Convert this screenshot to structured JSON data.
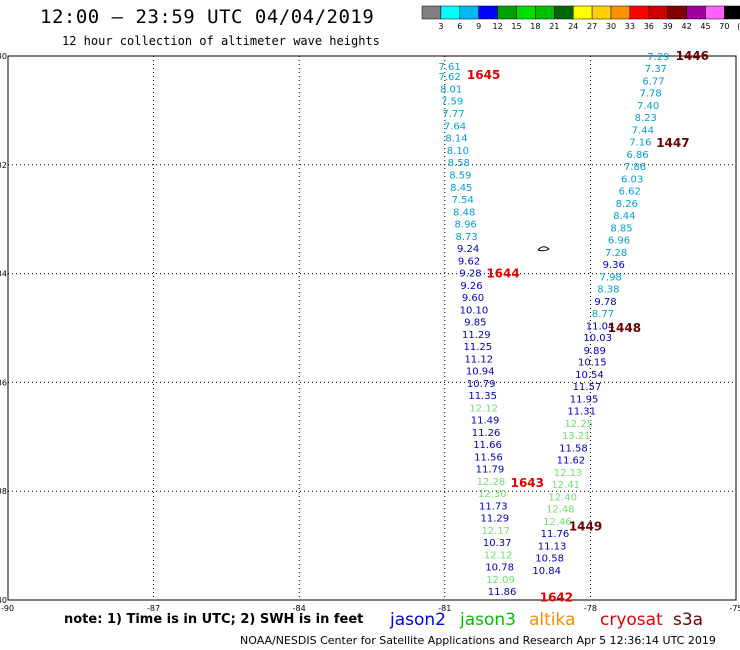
{
  "header": {
    "title": "12:00 – 23:59 UTC 04/04/2019",
    "subtitle": "12 hour collection of altimeter wave heights"
  },
  "colorbar": {
    "unit": "(ft)",
    "bins": [
      {
        "label": "",
        "color": "#7f7f7f"
      },
      {
        "label": "3",
        "color": "#00ffff"
      },
      {
        "label": "6",
        "color": "#00b8f0"
      },
      {
        "label": "9",
        "color": "#0000ff"
      },
      {
        "label": "12",
        "color": "#00a000"
      },
      {
        "label": "15",
        "color": "#00e000"
      },
      {
        "label": "18",
        "color": "#00c000"
      },
      {
        "label": "21",
        "color": "#006800"
      },
      {
        "label": "24",
        "color": "#ffff00"
      },
      {
        "label": "27",
        "color": "#ffd000"
      },
      {
        "label": "30",
        "color": "#ff9000"
      },
      {
        "label": "33",
        "color": "#ff0000"
      },
      {
        "label": "36",
        "color": "#d00000"
      },
      {
        "label": "39",
        "color": "#800000"
      },
      {
        "label": "42",
        "color": "#a000a0"
      },
      {
        "label": "45",
        "color": "#ff60ff"
      },
      {
        "label": "70",
        "color": "#000000"
      }
    ]
  },
  "legend": [
    {
      "name": "jason2",
      "color": "#0000e0"
    },
    {
      "name": "jason3",
      "color": "#00c000"
    },
    {
      "name": "altika",
      "color": "#ff8c00"
    },
    {
      "name": "cryosat",
      "color": "#e00000"
    },
    {
      "name": "s3a",
      "color": "#700000"
    }
  ],
  "note": "note: 1) Time is in UTC; 2) SWH is in feet",
  "credit": "NOAA/NESDIS Center for Satellite Applications and Research    Apr  5 12:36:14 UTC 2019",
  "chart_data": {
    "type": "scatter",
    "xlim": [
      -90,
      -75
    ],
    "ylim": [
      -40,
      -30
    ],
    "xticks": [
      -87,
      -84,
      -81,
      -78,
      -75
    ],
    "yticks": [
      -30,
      -32,
      -34,
      -36,
      -38
    ],
    "x_tick_labels": [
      "-87",
      "-84",
      "-81",
      "-78",
      "-75"
    ],
    "y_tick_labels": [
      "-30",
      "-32",
      "-34",
      "-36",
      "-38",
      "-40"
    ],
    "corner_label": "-90",
    "grid": true,
    "series": [
      {
        "name": "jason3",
        "pass_time_labels": [
          {
            "text": "1645",
            "color": "#e00000",
            "x": -80.2,
            "y": -30.35
          },
          {
            "text": "1644",
            "color": "#e00000",
            "x": -79.8,
            "y": -34.0
          },
          {
            "text": "1643",
            "color": "#e00000",
            "x": -79.3,
            "y": -37.85
          },
          {
            "text": "1642",
            "color": "#e00000",
            "x": -78.7,
            "y": -39.95
          }
        ],
        "points": [
          {
            "v": "7.61",
            "c": "#00a0d8",
            "x": -80.9,
            "y": -30.18
          },
          {
            "v": "7.62",
            "c": "#00a0d8",
            "x": -80.9,
            "y": -30.37
          },
          {
            "v": "8.01",
            "c": "#00a0d8",
            "x": -80.87,
            "y": -30.6
          },
          {
            "v": "7.59",
            "c": "#00a0d8",
            "x": -80.85,
            "y": -30.82
          },
          {
            "v": "7.77",
            "c": "#00a0d8",
            "x": -80.82,
            "y": -31.05
          },
          {
            "v": "7.64",
            "c": "#00a0d8",
            "x": -80.79,
            "y": -31.28
          },
          {
            "v": "8.14",
            "c": "#00a0d8",
            "x": -80.76,
            "y": -31.5
          },
          {
            "v": "8.10",
            "c": "#00a0d8",
            "x": -80.73,
            "y": -31.73
          },
          {
            "v": "8.58",
            "c": "#00a0d8",
            "x": -80.71,
            "y": -31.95
          },
          {
            "v": "8.59",
            "c": "#00a0d8",
            "x": -80.68,
            "y": -32.18
          },
          {
            "v": "8.45",
            "c": "#00a0d8",
            "x": -80.66,
            "y": -32.41
          },
          {
            "v": "7.54",
            "c": "#00a0d8",
            "x": -80.63,
            "y": -32.63
          },
          {
            "v": "8.48",
            "c": "#00a0d8",
            "x": -80.6,
            "y": -32.86
          },
          {
            "v": "8.96",
            "c": "#00a0d8",
            "x": -80.57,
            "y": -33.08
          },
          {
            "v": "8.73",
            "c": "#00a0d8",
            "x": -80.55,
            "y": -33.31
          },
          {
            "v": "9.24",
            "c": "#0000c0",
            "x": -80.52,
            "y": -33.53
          },
          {
            "v": "9.62",
            "c": "#0000c0",
            "x": -80.5,
            "y": -33.76
          },
          {
            "v": "9.28",
            "c": "#0000c0",
            "x": -80.47,
            "y": -33.98
          },
          {
            "v": "9.26",
            "c": "#0000c0",
            "x": -80.45,
            "y": -34.21
          },
          {
            "v": "9.60",
            "c": "#0000c0",
            "x": -80.42,
            "y": -34.43
          },
          {
            "v": "10.10",
            "c": "#0000c0",
            "x": -80.4,
            "y": -34.66
          },
          {
            "v": "9.85",
            "c": "#0000c0",
            "x": -80.37,
            "y": -34.88
          },
          {
            "v": "11.29",
            "c": "#0000c0",
            "x": -80.35,
            "y": -35.11
          },
          {
            "v": "11.25",
            "c": "#0000c0",
            "x": -80.32,
            "y": -35.33
          },
          {
            "v": "11.12",
            "c": "#0000c0",
            "x": -80.3,
            "y": -35.56
          },
          {
            "v": "10.94",
            "c": "#0000c0",
            "x": -80.27,
            "y": -35.78
          },
          {
            "v": "10.79",
            "c": "#0000c0",
            "x": -80.25,
            "y": -36.01
          },
          {
            "v": "11.35",
            "c": "#0000c0",
            "x": -80.22,
            "y": -36.23
          },
          {
            "v": "12.12",
            "c": "#70e070",
            "x": -80.2,
            "y": -36.46
          },
          {
            "v": "11.49",
            "c": "#0000c0",
            "x": -80.17,
            "y": -36.68
          },
          {
            "v": "11.26",
            "c": "#0000c0",
            "x": -80.15,
            "y": -36.91
          },
          {
            "v": "11.66",
            "c": "#0000c0",
            "x": -80.12,
            "y": -37.13
          },
          {
            "v": "11.56",
            "c": "#0000c0",
            "x": -80.1,
            "y": -37.36
          },
          {
            "v": "11.79",
            "c": "#0000c0",
            "x": -80.07,
            "y": -37.58
          },
          {
            "v": "12.28",
            "c": "#70e070",
            "x": -80.05,
            "y": -37.81
          },
          {
            "v": "12.30",
            "c": "#70e070",
            "x": -80.02,
            "y": -38.03
          },
          {
            "v": "11.73",
            "c": "#0000c0",
            "x": -80.0,
            "y": -38.26
          },
          {
            "v": "11.29",
            "c": "#0000c0",
            "x": -79.97,
            "y": -38.48
          },
          {
            "v": "12.17",
            "c": "#70e070",
            "x": -79.95,
            "y": -38.71
          },
          {
            "v": "10.37",
            "c": "#0000c0",
            "x": -79.92,
            "y": -38.93
          },
          {
            "v": "12.12",
            "c": "#70e070",
            "x": -79.9,
            "y": -39.16
          },
          {
            "v": "10.78",
            "c": "#0000c0",
            "x": -79.87,
            "y": -39.38
          },
          {
            "v": "12.09",
            "c": "#70e070",
            "x": -79.85,
            "y": -39.61
          },
          {
            "v": "11.86",
            "c": "#0000c0",
            "x": -79.82,
            "y": -39.83
          }
        ]
      },
      {
        "name": "s3a",
        "pass_time_labels": [
          {
            "text": "1446",
            "color": "#700000",
            "x": -75.9,
            "y": -30.0
          },
          {
            "text": "1447",
            "color": "#700000",
            "x": -76.3,
            "y": -31.6
          },
          {
            "text": "1448",
            "color": "#700000",
            "x": -77.3,
            "y": -35.0
          },
          {
            "text": "1449",
            "color": "#700000",
            "x": -78.1,
            "y": -38.65
          }
        ],
        "points": [
          {
            "v": "7.29",
            "c": "#00a0d8",
            "x": -76.6,
            "y": -30.0
          },
          {
            "v": "7.37",
            "c": "#00a0d8",
            "x": -76.65,
            "y": -30.22
          },
          {
            "v": "6.77",
            "c": "#00a0d8",
            "x": -76.7,
            "y": -30.45
          },
          {
            "v": "7.78",
            "c": "#00a0d8",
            "x": -76.76,
            "y": -30.67
          },
          {
            "v": "7.40",
            "c": "#00a0d8",
            "x": -76.81,
            "y": -30.9
          },
          {
            "v": "8.23",
            "c": "#00a0d8",
            "x": -76.86,
            "y": -31.12
          },
          {
            "v": "7.44",
            "c": "#00a0d8",
            "x": -76.92,
            "y": -31.35
          },
          {
            "v": "7.16",
            "c": "#00a0d8",
            "x": -76.97,
            "y": -31.57
          },
          {
            "v": "6.86",
            "c": "#00a0d8",
            "x": -77.03,
            "y": -31.8
          },
          {
            "v": "7.86",
            "c": "#00a0d8",
            "x": -77.08,
            "y": -32.02
          },
          {
            "v": "6.03",
            "c": "#00a0d8",
            "x": -77.14,
            "y": -32.25
          },
          {
            "v": "6.62",
            "c": "#00a0d8",
            "x": -77.19,
            "y": -32.47
          },
          {
            "v": "8.26",
            "c": "#00a0d8",
            "x": -77.25,
            "y": -32.7
          },
          {
            "v": "8.44",
            "c": "#00a0d8",
            "x": -77.3,
            "y": -32.92
          },
          {
            "v": "8.85",
            "c": "#00a0d8",
            "x": -77.36,
            "y": -33.15
          },
          {
            "v": "6.96",
            "c": "#00a0d8",
            "x": -77.41,
            "y": -33.37
          },
          {
            "v": "7.28",
            "c": "#00a0d8",
            "x": -77.47,
            "y": -33.6
          },
          {
            "v": "9.36",
            "c": "#0000c0",
            "x": -77.52,
            "y": -33.82
          },
          {
            "v": "7.98",
            "c": "#00a0d8",
            "x": -77.58,
            "y": -34.05
          },
          {
            "v": "8.38",
            "c": "#00a0d8",
            "x": -77.63,
            "y": -34.27
          },
          {
            "v": "9.78",
            "c": "#0000c0",
            "x": -77.69,
            "y": -34.5
          },
          {
            "v": "8.77",
            "c": "#00a0d8",
            "x": -77.74,
            "y": -34.72
          },
          {
            "v": "11.04",
            "c": "#0000c0",
            "x": -77.8,
            "y": -34.95
          },
          {
            "v": "10.03",
            "c": "#0000c0",
            "x": -77.85,
            "y": -35.17
          },
          {
            "v": "9.89",
            "c": "#0000c0",
            "x": -77.91,
            "y": -35.4
          },
          {
            "v": "10.15",
            "c": "#0000c0",
            "x": -77.96,
            "y": -35.62
          },
          {
            "v": "10.54",
            "c": "#0000c0",
            "x": -78.02,
            "y": -35.85
          },
          {
            "v": "11.57",
            "c": "#0000c0",
            "x": -78.07,
            "y": -36.07
          },
          {
            "v": "11.95",
            "c": "#0000c0",
            "x": -78.13,
            "y": -36.3
          },
          {
            "v": "11.31",
            "c": "#0000c0",
            "x": -78.18,
            "y": -36.52
          },
          {
            "v": "12.25",
            "c": "#70e070",
            "x": -78.24,
            "y": -36.75
          },
          {
            "v": "13.21",
            "c": "#70e070",
            "x": -78.29,
            "y": -36.97
          },
          {
            "v": "11.58",
            "c": "#0000c0",
            "x": -78.35,
            "y": -37.2
          },
          {
            "v": "11.62",
            "c": "#0000c0",
            "x": -78.4,
            "y": -37.42
          },
          {
            "v": "12.13",
            "c": "#70e070",
            "x": -78.46,
            "y": -37.65
          },
          {
            "v": "12.41",
            "c": "#70e070",
            "x": -78.51,
            "y": -37.87
          },
          {
            "v": "12.40",
            "c": "#70e070",
            "x": -78.57,
            "y": -38.1
          },
          {
            "v": "12.48",
            "c": "#70e070",
            "x": -78.62,
            "y": -38.32
          },
          {
            "v": "12.46",
            "c": "#70e070",
            "x": -78.68,
            "y": -38.55
          },
          {
            "v": "11.76",
            "c": "#0000c0",
            "x": -78.73,
            "y": -38.77
          },
          {
            "v": "11.13",
            "c": "#0000c0",
            "x": -78.79,
            "y": -39.0
          },
          {
            "v": "10.58",
            "c": "#0000c0",
            "x": -78.84,
            "y": -39.22
          },
          {
            "v": "10.84",
            "c": "#0000c0",
            "x": -78.9,
            "y": -39.45
          }
        ]
      }
    ]
  }
}
